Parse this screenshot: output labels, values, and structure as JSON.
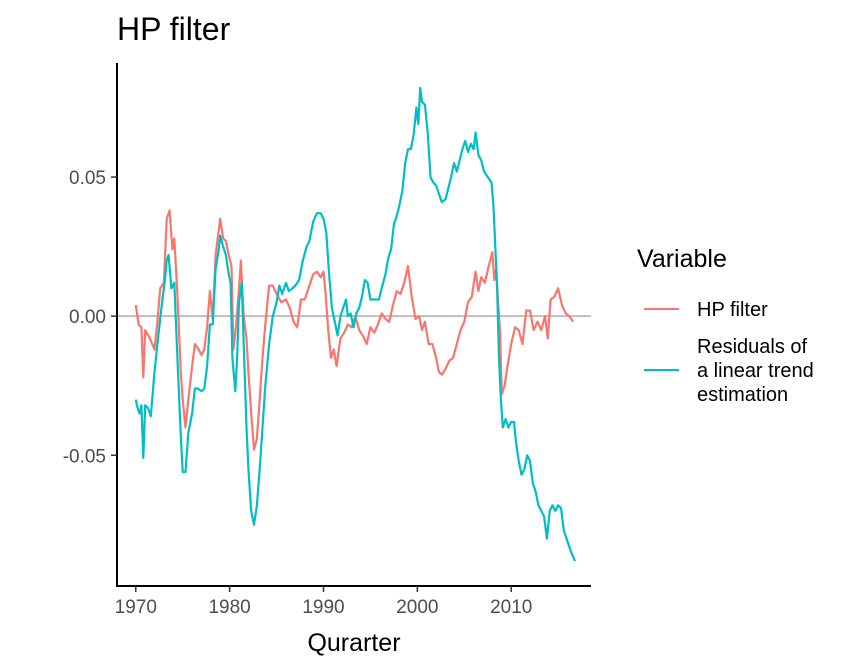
{
  "chart_data": {
    "type": "line",
    "title": "HP filter",
    "xlabel": "Qurarter",
    "ylabel": "",
    "xlim": [
      1968.0,
      2018.5
    ],
    "ylim": [
      -0.097,
      0.091
    ],
    "x_ticks": [
      1970,
      1980,
      1990,
      2000,
      2010
    ],
    "x_tick_labels": [
      "1970",
      "1980",
      "1990",
      "2000",
      "2010"
    ],
    "y_ticks": [
      -0.05,
      0.0,
      0.05
    ],
    "y_tick_labels": [
      "-0.05",
      "0.00",
      "0.05"
    ],
    "reference_line": 0.0,
    "legend": {
      "title": "Variable",
      "position": "right",
      "entries": [
        {
          "key": "hp",
          "label": "HP filter",
          "color": "#F8766D"
        },
        {
          "key": "resid",
          "label": "Residuals of a linear trend estimation",
          "label_lines": [
            "Residuals of",
            "a linear trend",
            "estimation"
          ],
          "color": "#00BFC4"
        }
      ]
    },
    "series": [
      {
        "name": "HP filter",
        "color": "#F8766D",
        "points": [
          [
            1970.0,
            0.004
          ],
          [
            1970.3,
            -0.003
          ],
          [
            1970.6,
            -0.004
          ],
          [
            1970.8,
            -0.022
          ],
          [
            1971.0,
            -0.005
          ],
          [
            1971.5,
            -0.008
          ],
          [
            1972.0,
            -0.012
          ],
          [
            1972.3,
            -0.002
          ],
          [
            1972.6,
            0.01
          ],
          [
            1973.0,
            0.012
          ],
          [
            1973.3,
            0.035
          ],
          [
            1973.6,
            0.038
          ],
          [
            1973.9,
            0.024
          ],
          [
            1974.1,
            0.028
          ],
          [
            1974.4,
            0.01
          ],
          [
            1974.8,
            -0.02
          ],
          [
            1975.0,
            -0.03
          ],
          [
            1975.3,
            -0.04
          ],
          [
            1975.6,
            -0.03
          ],
          [
            1976.0,
            -0.018
          ],
          [
            1976.3,
            -0.01
          ],
          [
            1976.7,
            -0.012
          ],
          [
            1977.0,
            -0.014
          ],
          [
            1977.3,
            -0.012
          ],
          [
            1977.6,
            -0.004
          ],
          [
            1977.9,
            0.009
          ],
          [
            1978.2,
            -0.001
          ],
          [
            1978.5,
            0.022
          ],
          [
            1978.8,
            0.03
          ],
          [
            1979.0,
            0.035
          ],
          [
            1979.3,
            0.028
          ],
          [
            1979.6,
            0.027
          ],
          [
            1979.9,
            0.022
          ],
          [
            1980.2,
            0.018
          ],
          [
            1980.4,
            -0.012
          ],
          [
            1980.7,
            -0.003
          ],
          [
            1981.0,
            0.01
          ],
          [
            1981.2,
            0.02
          ],
          [
            1981.5,
            0.0
          ],
          [
            1981.8,
            -0.008
          ],
          [
            1982.0,
            -0.02
          ],
          [
            1982.3,
            -0.035
          ],
          [
            1982.6,
            -0.048
          ],
          [
            1982.9,
            -0.044
          ],
          [
            1983.2,
            -0.03
          ],
          [
            1983.5,
            -0.015
          ],
          [
            1983.8,
            -0.003
          ],
          [
            1984.2,
            0.011
          ],
          [
            1984.6,
            0.011
          ],
          [
            1985.0,
            0.008
          ],
          [
            1985.5,
            0.005
          ],
          [
            1986.0,
            0.006
          ],
          [
            1986.4,
            0.003
          ],
          [
            1986.8,
            -0.002
          ],
          [
            1987.2,
            -0.004
          ],
          [
            1987.6,
            0.006
          ],
          [
            1988.0,
            0.006
          ],
          [
            1988.5,
            0.011
          ],
          [
            1988.9,
            0.015
          ],
          [
            1989.3,
            0.016
          ],
          [
            1989.7,
            0.014
          ],
          [
            1990.0,
            0.016
          ],
          [
            1990.2,
            0.009
          ],
          [
            1990.5,
            -0.005
          ],
          [
            1990.8,
            -0.015
          ],
          [
            1991.1,
            -0.012
          ],
          [
            1991.4,
            -0.018
          ],
          [
            1991.8,
            -0.008
          ],
          [
            1992.2,
            -0.006
          ],
          [
            1992.6,
            -0.003
          ],
          [
            1993.0,
            -0.004
          ],
          [
            1993.4,
            0.0
          ],
          [
            1993.8,
            -0.005
          ],
          [
            1994.2,
            -0.007
          ],
          [
            1994.6,
            -0.01
          ],
          [
            1995.0,
            -0.004
          ],
          [
            1995.4,
            -0.006
          ],
          [
            1995.8,
            -0.003
          ],
          [
            1996.2,
            0.001
          ],
          [
            1996.6,
            -0.001
          ],
          [
            1997.0,
            -0.002
          ],
          [
            1997.4,
            0.004
          ],
          [
            1997.8,
            0.009
          ],
          [
            1998.2,
            0.008
          ],
          [
            1998.6,
            0.012
          ],
          [
            1999.0,
            0.018
          ],
          [
            1999.4,
            0.007
          ],
          [
            1999.8,
            -0.001
          ],
          [
            2000.2,
            0.0
          ],
          [
            2000.5,
            -0.005
          ],
          [
            2000.8,
            -0.002
          ],
          [
            2001.2,
            -0.01
          ],
          [
            2001.6,
            -0.01
          ],
          [
            2002.0,
            -0.015
          ],
          [
            2002.3,
            -0.02
          ],
          [
            2002.6,
            -0.021
          ],
          [
            2003.0,
            -0.019
          ],
          [
            2003.4,
            -0.016
          ],
          [
            2003.8,
            -0.015
          ],
          [
            2004.2,
            -0.01
          ],
          [
            2004.6,
            -0.005
          ],
          [
            2005.0,
            -0.002
          ],
          [
            2005.4,
            0.005
          ],
          [
            2005.8,
            0.007
          ],
          [
            2006.2,
            0.016
          ],
          [
            2006.5,
            0.009
          ],
          [
            2006.8,
            0.014
          ],
          [
            2007.2,
            0.012
          ],
          [
            2007.6,
            0.018
          ],
          [
            2008.0,
            0.023
          ],
          [
            2008.2,
            0.013
          ],
          [
            2008.4,
            0.017
          ],
          [
            2008.6,
            0.005
          ],
          [
            2008.8,
            -0.005
          ],
          [
            2009.0,
            -0.028
          ],
          [
            2009.3,
            -0.025
          ],
          [
            2009.6,
            -0.018
          ],
          [
            2010.0,
            -0.01
          ],
          [
            2010.4,
            -0.004
          ],
          [
            2010.8,
            -0.005
          ],
          [
            2011.2,
            -0.01
          ],
          [
            2011.6,
            0.002
          ],
          [
            2012.0,
            0.002
          ],
          [
            2012.4,
            -0.005
          ],
          [
            2012.8,
            -0.002
          ],
          [
            2013.2,
            -0.005
          ],
          [
            2013.6,
            0.0
          ],
          [
            2013.9,
            -0.008
          ],
          [
            2014.2,
            0.006
          ],
          [
            2014.6,
            0.007
          ],
          [
            2015.0,
            0.01
          ],
          [
            2015.4,
            0.004
          ],
          [
            2015.8,
            0.001
          ],
          [
            2016.2,
            0.0
          ],
          [
            2016.6,
            -0.002
          ]
        ]
      },
      {
        "name": "Residuals of a linear trend estimation",
        "color": "#00BFC4",
        "points": [
          [
            1970.0,
            -0.03
          ],
          [
            1970.2,
            -0.033
          ],
          [
            1970.4,
            -0.035
          ],
          [
            1970.6,
            -0.032
          ],
          [
            1970.8,
            -0.051
          ],
          [
            1971.0,
            -0.032
          ],
          [
            1971.3,
            -0.033
          ],
          [
            1971.6,
            -0.036
          ],
          [
            1972.0,
            -0.02
          ],
          [
            1972.4,
            -0.007
          ],
          [
            1972.8,
            0.005
          ],
          [
            1973.1,
            0.013
          ],
          [
            1973.3,
            0.02
          ],
          [
            1973.5,
            0.022
          ],
          [
            1973.8,
            0.01
          ],
          [
            1974.1,
            0.012
          ],
          [
            1974.5,
            -0.02
          ],
          [
            1974.8,
            -0.043
          ],
          [
            1975.0,
            -0.056
          ],
          [
            1975.3,
            -0.056
          ],
          [
            1975.6,
            -0.042
          ],
          [
            1976.0,
            -0.035
          ],
          [
            1976.3,
            -0.026
          ],
          [
            1976.6,
            -0.026
          ],
          [
            1977.0,
            -0.027
          ],
          [
            1977.3,
            -0.026
          ],
          [
            1977.6,
            -0.018
          ],
          [
            1977.9,
            -0.003
          ],
          [
            1978.2,
            -0.003
          ],
          [
            1978.5,
            0.017
          ],
          [
            1978.8,
            0.023
          ],
          [
            1979.0,
            0.029
          ],
          [
            1979.3,
            0.025
          ],
          [
            1979.6,
            0.022
          ],
          [
            1979.9,
            0.015
          ],
          [
            1980.1,
            0.012
          ],
          [
            1980.3,
            -0.015
          ],
          [
            1980.6,
            -0.027
          ],
          [
            1980.8,
            -0.015
          ],
          [
            1981.0,
            0.005
          ],
          [
            1981.3,
            0.012
          ],
          [
            1981.5,
            -0.01
          ],
          [
            1981.8,
            -0.04
          ],
          [
            1982.0,
            -0.055
          ],
          [
            1982.3,
            -0.07
          ],
          [
            1982.6,
            -0.075
          ],
          [
            1982.9,
            -0.068
          ],
          [
            1983.2,
            -0.055
          ],
          [
            1983.5,
            -0.04
          ],
          [
            1983.8,
            -0.025
          ],
          [
            1984.2,
            -0.01
          ],
          [
            1984.6,
            0.0
          ],
          [
            1985.0,
            0.005
          ],
          [
            1985.3,
            0.011
          ],
          [
            1985.6,
            0.008
          ],
          [
            1986.0,
            0.012
          ],
          [
            1986.3,
            0.009
          ],
          [
            1986.7,
            0.01
          ],
          [
            1987.0,
            0.011
          ],
          [
            1987.4,
            0.013
          ],
          [
            1987.8,
            0.02
          ],
          [
            1988.2,
            0.025
          ],
          [
            1988.5,
            0.027
          ],
          [
            1988.9,
            0.034
          ],
          [
            1989.3,
            0.037
          ],
          [
            1989.7,
            0.037
          ],
          [
            1990.0,
            0.035
          ],
          [
            1990.3,
            0.03
          ],
          [
            1990.6,
            0.015
          ],
          [
            1990.9,
            0.003
          ],
          [
            1991.2,
            -0.002
          ],
          [
            1991.5,
            -0.007
          ],
          [
            1991.8,
            0.0
          ],
          [
            1992.1,
            0.003
          ],
          [
            1992.4,
            0.006
          ],
          [
            1992.6,
            0.0
          ],
          [
            1992.9,
            0.001
          ],
          [
            1993.2,
            -0.004
          ],
          [
            1993.5,
            0.001
          ],
          [
            1993.8,
            0.003
          ],
          [
            1994.1,
            0.007
          ],
          [
            1994.4,
            0.013
          ],
          [
            1994.7,
            0.012
          ],
          [
            1995.0,
            0.006
          ],
          [
            1995.3,
            0.006
          ],
          [
            1995.6,
            0.006
          ],
          [
            1995.9,
            0.006
          ],
          [
            1996.2,
            0.01
          ],
          [
            1996.6,
            0.015
          ],
          [
            1996.9,
            0.021
          ],
          [
            1997.2,
            0.024
          ],
          [
            1997.5,
            0.033
          ],
          [
            1997.8,
            0.036
          ],
          [
            1998.1,
            0.04
          ],
          [
            1998.4,
            0.045
          ],
          [
            1998.7,
            0.055
          ],
          [
            1999.0,
            0.06
          ],
          [
            1999.3,
            0.06
          ],
          [
            1999.6,
            0.065
          ],
          [
            1999.9,
            0.075
          ],
          [
            2000.1,
            0.069
          ],
          [
            2000.3,
            0.082
          ],
          [
            2000.5,
            0.077
          ],
          [
            2000.8,
            0.076
          ],
          [
            2001.1,
            0.066
          ],
          [
            2001.4,
            0.05
          ],
          [
            2001.7,
            0.048
          ],
          [
            2002.0,
            0.047
          ],
          [
            2002.3,
            0.044
          ],
          [
            2002.6,
            0.041
          ],
          [
            2003.0,
            0.042
          ],
          [
            2003.3,
            0.046
          ],
          [
            2003.6,
            0.05
          ],
          [
            2003.9,
            0.055
          ],
          [
            2004.2,
            0.052
          ],
          [
            2004.5,
            0.056
          ],
          [
            2004.8,
            0.06
          ],
          [
            2005.1,
            0.063
          ],
          [
            2005.4,
            0.059
          ],
          [
            2005.7,
            0.062
          ],
          [
            2006.0,
            0.06
          ],
          [
            2006.2,
            0.066
          ],
          [
            2006.5,
            0.058
          ],
          [
            2006.8,
            0.056
          ],
          [
            2007.1,
            0.052
          ],
          [
            2007.5,
            0.05
          ],
          [
            2007.9,
            0.048
          ],
          [
            2008.1,
            0.04
          ],
          [
            2008.3,
            0.025
          ],
          [
            2008.5,
            0.01
          ],
          [
            2008.7,
            -0.015
          ],
          [
            2008.9,
            -0.03
          ],
          [
            2009.1,
            -0.04
          ],
          [
            2009.4,
            -0.037
          ],
          [
            2009.7,
            -0.04
          ],
          [
            2010.0,
            -0.038
          ],
          [
            2010.3,
            -0.038
          ],
          [
            2010.5,
            -0.045
          ],
          [
            2010.8,
            -0.052
          ],
          [
            2011.1,
            -0.057
          ],
          [
            2011.4,
            -0.055
          ],
          [
            2011.7,
            -0.05
          ],
          [
            2012.0,
            -0.052
          ],
          [
            2012.3,
            -0.06
          ],
          [
            2012.6,
            -0.063
          ],
          [
            2012.9,
            -0.068
          ],
          [
            2013.2,
            -0.07
          ],
          [
            2013.5,
            -0.072
          ],
          [
            2013.8,
            -0.08
          ],
          [
            2014.1,
            -0.07
          ],
          [
            2014.4,
            -0.068
          ],
          [
            2014.7,
            -0.07
          ],
          [
            2015.0,
            -0.068
          ],
          [
            2015.3,
            -0.069
          ],
          [
            2015.6,
            -0.077
          ],
          [
            2016.0,
            -0.081
          ],
          [
            2016.4,
            -0.085
          ],
          [
            2016.8,
            -0.088
          ]
        ]
      }
    ]
  }
}
